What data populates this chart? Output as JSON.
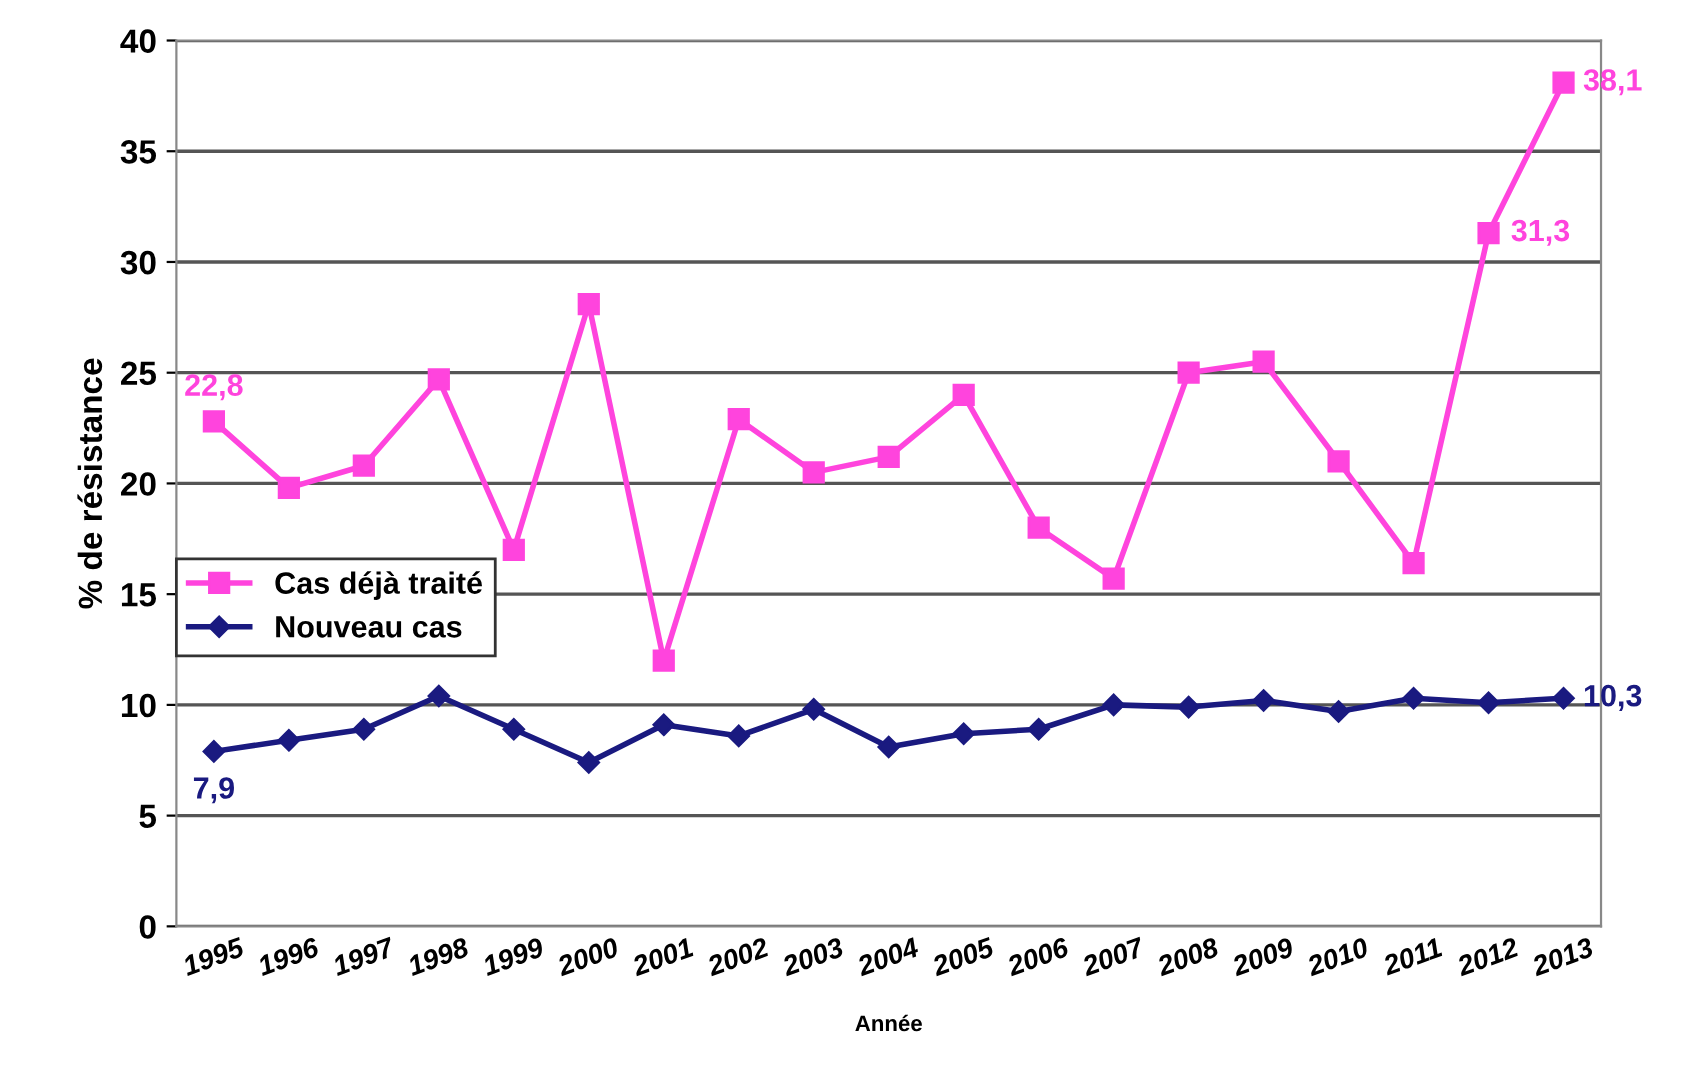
{
  "chart_data": {
    "type": "line",
    "xlabel": "Année",
    "ylabel": "% de résistance",
    "categories": [
      "1995",
      "1996",
      "1997",
      "1998",
      "1999",
      "2000",
      "2001",
      "2002",
      "2003",
      "2004",
      "2005",
      "2006",
      "2007",
      "2008",
      "2009",
      "2010",
      "2011",
      "2012",
      "2013"
    ],
    "series": [
      {
        "name": "Cas déjà traité",
        "color": "#ff44dd",
        "marker": "square",
        "values": [
          22.8,
          19.8,
          20.8,
          24.7,
          17.0,
          28.1,
          12.0,
          22.9,
          20.5,
          21.2,
          24.0,
          18.0,
          15.7,
          25.0,
          25.5,
          21.0,
          16.4,
          31.3,
          38.1
        ],
        "value_labels": [
          "22,8",
          null,
          null,
          null,
          null,
          null,
          null,
          null,
          null,
          null,
          null,
          null,
          null,
          null,
          null,
          null,
          null,
          "31,3",
          "38,1"
        ]
      },
      {
        "name": "Nouveau cas",
        "color": "#1a1a80",
        "marker": "diamond",
        "values": [
          7.9,
          8.4,
          8.9,
          10.4,
          8.9,
          7.4,
          9.1,
          8.6,
          9.8,
          8.1,
          8.7,
          8.9,
          10.0,
          9.9,
          10.2,
          9.7,
          10.3,
          10.1,
          10.3
        ],
        "value_labels": [
          "7,9",
          null,
          null,
          null,
          null,
          null,
          null,
          null,
          null,
          null,
          null,
          null,
          null,
          null,
          null,
          null,
          null,
          null,
          "10,3"
        ]
      }
    ],
    "ylim": [
      0,
      40
    ],
    "yticks": [
      0,
      5,
      10,
      15,
      20,
      25,
      30,
      35,
      40
    ],
    "grid": "y",
    "legend": "left",
    "line_style": "solid"
  }
}
